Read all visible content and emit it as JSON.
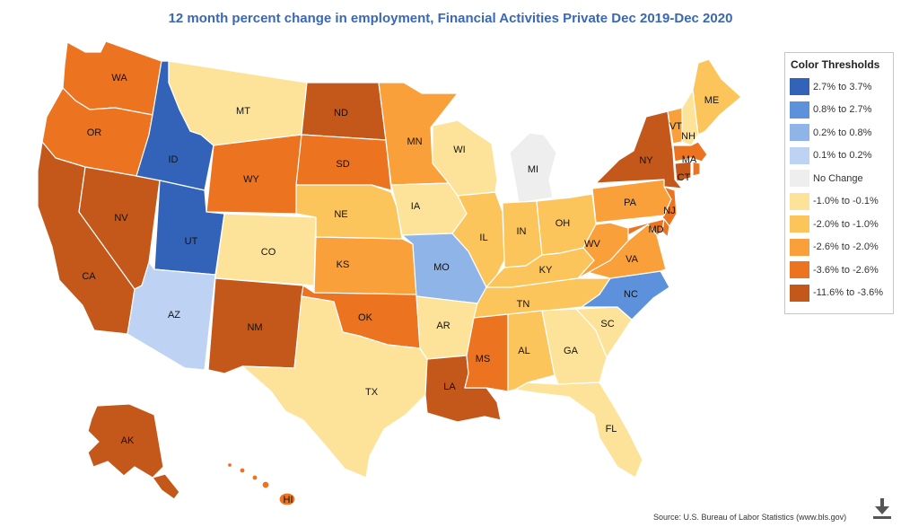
{
  "title": "12 month percent change in employment, Financial Activities Private Dec 2019-Dec 2020",
  "legend": {
    "title": "Color Thresholds",
    "items": [
      {
        "label": "2.7% to 3.7%",
        "color": "#3263b9"
      },
      {
        "label": "0.8% to 2.7%",
        "color": "#5e91dc"
      },
      {
        "label": "0.2% to 0.8%",
        "color": "#8fb4e8"
      },
      {
        "label": "0.1% to 0.2%",
        "color": "#bed3f3"
      },
      {
        "label": "No Change",
        "color": "#eeeeee"
      },
      {
        "label": "-1.0% to -0.1%",
        "color": "#fde39a"
      },
      {
        "label": "-2.0% to -1.0%",
        "color": "#fcc55c"
      },
      {
        "label": "-2.6% to -2.0%",
        "color": "#f9a03a"
      },
      {
        "label": "-3.6% to -2.6%",
        "color": "#ec7320"
      },
      {
        "label": "-11.6% to -3.6%",
        "color": "#c4581a"
      }
    ]
  },
  "states": {
    "WA": 8,
    "OR": 8,
    "CA": 9,
    "NV": 9,
    "ID": 0,
    "UT": 0,
    "AZ": 3,
    "MT": 5,
    "WY": 8,
    "CO": 5,
    "NM": 9,
    "ND": 9,
    "SD": 8,
    "NE": 6,
    "KS": 7,
    "OK": 8,
    "TX": 5,
    "MN": 7,
    "IA": 5,
    "MO": 2,
    "AR": 5,
    "LA": 9,
    "WI": 5,
    "IL": 6,
    "MI": 4,
    "IN": 6,
    "OH": 6,
    "KY": 6,
    "TN": 6,
    "MS": 8,
    "AL": 6,
    "GA": 5,
    "FL": 5,
    "SC": 5,
    "NC": 1,
    "VA": 7,
    "WV": 7,
    "PA": 7,
    "NY": 9,
    "VT": 7,
    "NH": 5,
    "ME": 6,
    "MA": 8,
    "RI": 8,
    "CT": 9,
    "NJ": 8,
    "DE": 8,
    "MD": 8,
    "AK": 9,
    "HI": 8
  },
  "labels": {
    "WA": "WA",
    "OR": "OR",
    "CA": "CA",
    "NV": "NV",
    "ID": "ID",
    "UT": "UT",
    "AZ": "AZ",
    "MT": "MT",
    "WY": "WY",
    "CO": "CO",
    "NM": "NM",
    "ND": "ND",
    "SD": "SD",
    "NE": "NE",
    "KS": "KS",
    "OK": "OK",
    "TX": "TX",
    "MN": "MN",
    "IA": "IA",
    "MO": "MO",
    "AR": "AR",
    "LA": "LA",
    "WI": "WI",
    "IL": "IL",
    "MI": "MI",
    "IN": "IN",
    "OH": "OH",
    "KY": "KY",
    "TN": "TN",
    "MS": "MS",
    "AL": "AL",
    "GA": "GA",
    "FL": "FL",
    "SC": "SC",
    "NC": "NC",
    "VA": "VA",
    "WV": "WV",
    "PA": "PA",
    "NY": "NY",
    "VT": "VT",
    "NH": "NH",
    "ME": "ME",
    "MA": "MA",
    "CT": "CT",
    "NJ": "NJ",
    "MD": "MD",
    "AK": "AK",
    "HI": "HI"
  },
  "source": "Source: U.S. Bureau of Labor Statistics (www.bls.gov)",
  "download_icon": "download-icon"
}
